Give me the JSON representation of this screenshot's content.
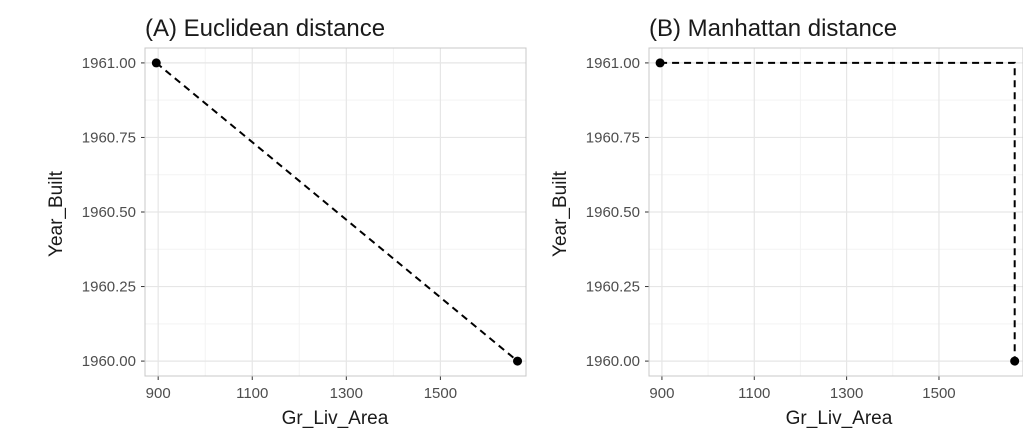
{
  "chart_data": [
    {
      "type": "scatter",
      "title": "(A) Euclidean distance",
      "xlabel": "Gr_Liv_Area",
      "ylabel": "Year_Built",
      "xlim": [
        872,
        1682
      ],
      "ylim": [
        1959.95,
        1961.05
      ],
      "x_ticks": [
        900,
        1100,
        1300,
        1500
      ],
      "x_tick_labels": [
        "900",
        "1100",
        "1300",
        "1500"
      ],
      "y_ticks": [
        1960.0,
        1960.25,
        1960.5,
        1960.75,
        1961.0
      ],
      "y_tick_labels": [
        "1960.00",
        "1960.25",
        "1960.50",
        "1960.75",
        "1961.00"
      ],
      "grid": true,
      "points": [
        {
          "x": 896,
          "y": 1961.0
        },
        {
          "x": 1664,
          "y": 1960.0
        }
      ],
      "connector": {
        "style": "dashed",
        "path": "direct"
      }
    },
    {
      "type": "scatter",
      "title": "(B) Manhattan distance",
      "xlabel": "Gr_Liv_Area",
      "ylabel": "Year_Built",
      "xlim": [
        872,
        1682
      ],
      "ylim": [
        1959.95,
        1961.05
      ],
      "x_ticks": [
        900,
        1100,
        1300,
        1500
      ],
      "x_tick_labels": [
        "900",
        "1100",
        "1300",
        "1500"
      ],
      "y_ticks": [
        1960.0,
        1960.25,
        1960.5,
        1960.75,
        1961.0
      ],
      "y_tick_labels": [
        "1960.00",
        "1960.25",
        "1960.50",
        "1960.75",
        "1961.00"
      ],
      "grid": true,
      "points": [
        {
          "x": 896,
          "y": 1961.0
        },
        {
          "x": 1664,
          "y": 1960.0
        }
      ],
      "connector": {
        "style": "dashed",
        "path": "manhattan"
      }
    }
  ],
  "colors": {
    "panel_border": "#c8c8c8",
    "grid_major": "#e6e6e6",
    "grid_minor": "#f3f3f3",
    "marks": "#000000"
  }
}
